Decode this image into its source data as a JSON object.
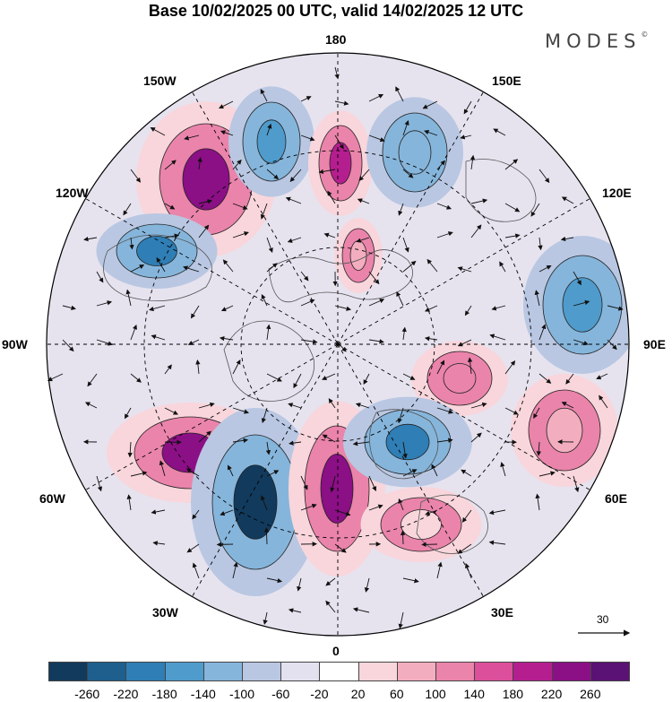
{
  "title": "Base 10/02/2025 00 UTC, valid 14/02/2025 12 UTC",
  "brand": {
    "name": "MODES",
    "mark": "©"
  },
  "map": {
    "projection": "north-polar-stereographic",
    "longitude_labels": {
      "top": "180",
      "bottom": "0",
      "left": "90W",
      "right": "90E",
      "upper_left_1": "150W",
      "upper_left_2": "120W",
      "upper_right_1": "150E",
      "upper_right_2": "120E",
      "lower_left_1": "60W",
      "lower_left_2": "30W",
      "lower_right_1": "60E",
      "lower_right_2": "30E"
    },
    "reference_vector": "30"
  },
  "colorbar": {
    "ticks": [
      "-260",
      "-220",
      "-180",
      "-140",
      "-100",
      "-60",
      "-20",
      "20",
      "60",
      "100",
      "140",
      "180",
      "220",
      "260"
    ],
    "colors": [
      "#123a5c",
      "#1f5f8d",
      "#2f7eb5",
      "#4f9bcc",
      "#86b5db",
      "#b9c7e2",
      "#e3e0ef",
      "#ffffff",
      "#f8d6dc",
      "#f2aebf",
      "#ea84aa",
      "#dc4f9b",
      "#b51e8f",
      "#8b0f85",
      "#5a1274"
    ]
  },
  "anomalies": [
    {
      "name": "pos-alaska-pacific",
      "sign": "positive",
      "level": "260",
      "color": "#8b0f85"
    },
    {
      "name": "neg-north-pacific",
      "sign": "negative",
      "level": "-140",
      "color": "#4f9bcc"
    },
    {
      "name": "pos-bering-sea",
      "sign": "positive",
      "level": "220",
      "color": "#b51e8f"
    },
    {
      "name": "neg-east-siberia",
      "sign": "negative",
      "level": "-100",
      "color": "#86b5db"
    },
    {
      "name": "pos-siberia-north",
      "sign": "positive",
      "level": "100",
      "color": "#f2aebf"
    },
    {
      "name": "neg-canada",
      "sign": "negative",
      "level": "-180",
      "color": "#2f7eb5"
    },
    {
      "name": "neg-central-asia",
      "sign": "negative",
      "level": "-140",
      "color": "#4f9bcc"
    },
    {
      "name": "pos-kara-sea",
      "sign": "positive",
      "level": "140",
      "color": "#ea84aa"
    },
    {
      "name": "pos-north-america-east",
      "sign": "positive",
      "level": "260",
      "color": "#8b0f85"
    },
    {
      "name": "neg-north-atlantic",
      "sign": "negative",
      "level": "-260",
      "color": "#123a5c"
    },
    {
      "name": "pos-iceland-norway",
      "sign": "positive",
      "level": "260",
      "color": "#8b0f85"
    },
    {
      "name": "neg-scandinavia",
      "sign": "negative",
      "level": "-180",
      "color": "#2f7eb5"
    },
    {
      "name": "pos-mediterranean",
      "sign": "positive",
      "level": "60",
      "color": "#f8d6dc"
    },
    {
      "name": "pos-india",
      "sign": "positive",
      "level": "100",
      "color": "#f2aebf"
    }
  ]
}
